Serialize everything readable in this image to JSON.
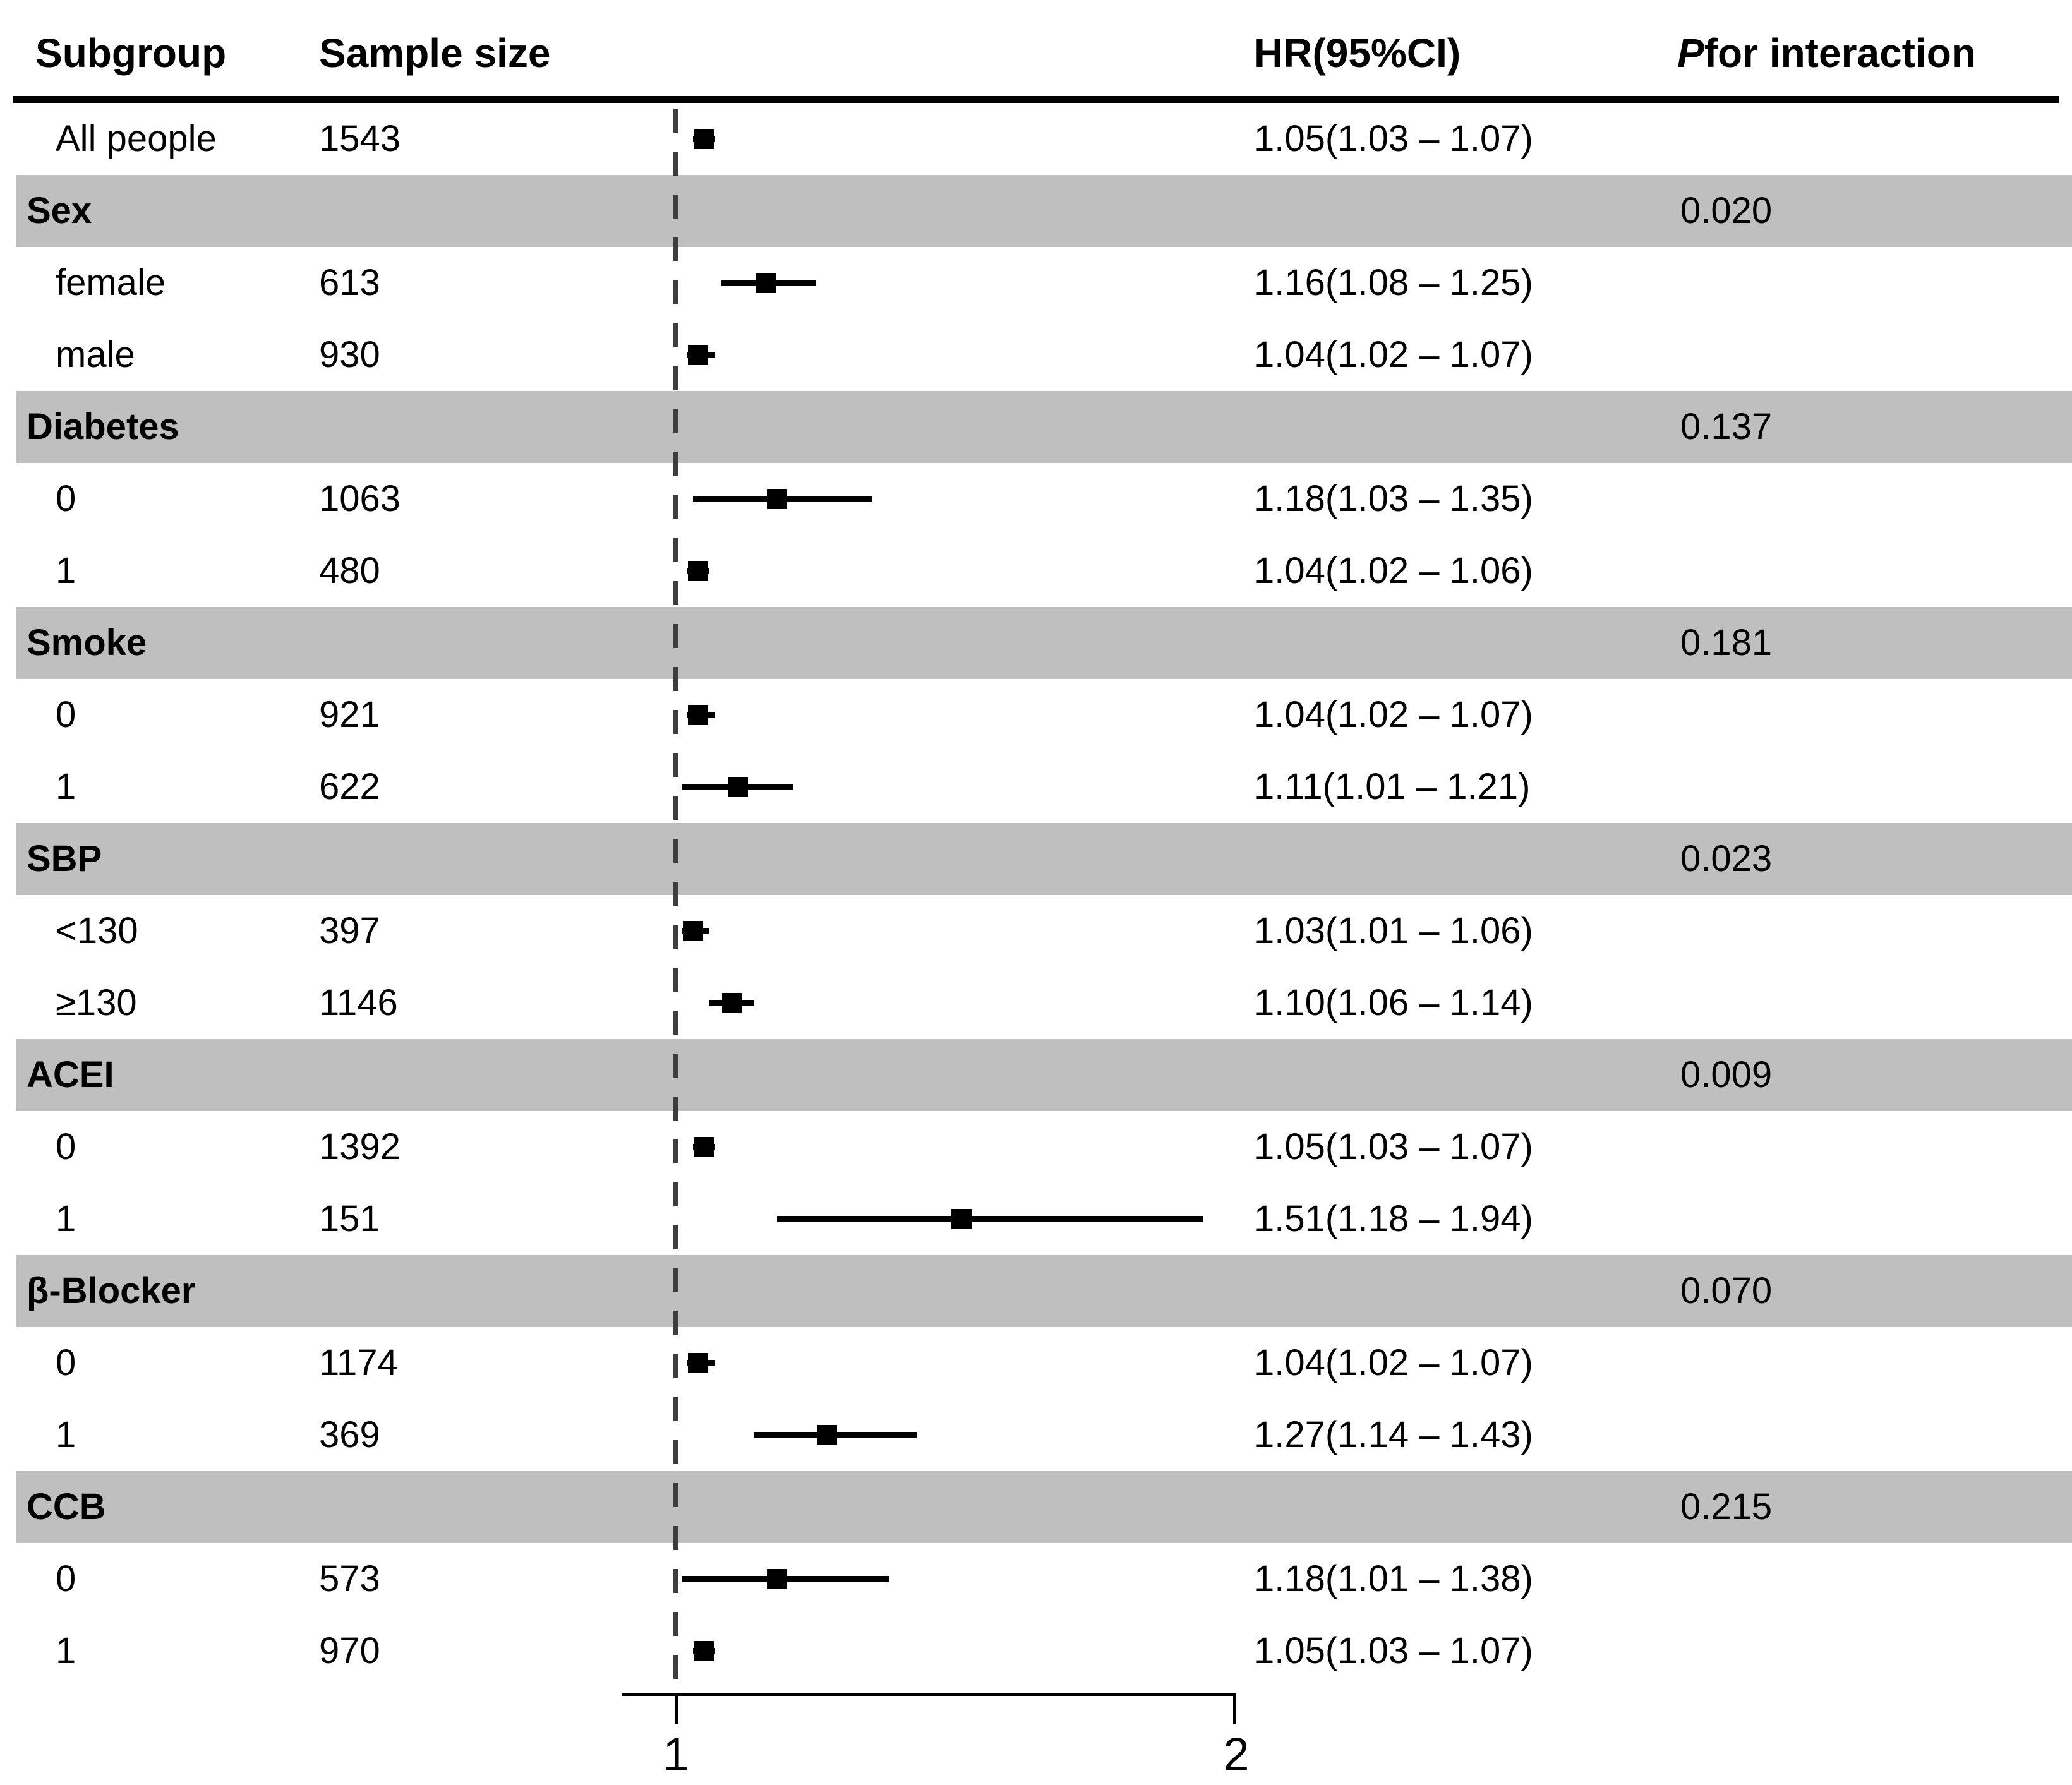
{
  "header": {
    "subgroup": "Subgroup",
    "sample_size": "Sample size",
    "hr_ci": "HR(95%CI)",
    "p_symbol": "P",
    "p_rest": " for interaction"
  },
  "axis": {
    "tick_labels": [
      "1",
      "2"
    ],
    "tick_values": [
      1,
      2
    ],
    "reference_value": 1
  },
  "colors": {
    "band_gray": "#bfbfbf",
    "marker_black": "#000000",
    "reference_dash": "#3d3d3d",
    "text": "#000000",
    "background": "#ffffff"
  },
  "rows": [
    {
      "type": "data",
      "label": "All people",
      "sample": "1543",
      "hr_text": "1.05(1.03 – 1.07)",
      "hr": 1.05,
      "lo": 1.03,
      "hi": 1.07
    },
    {
      "type": "band",
      "label": "Sex",
      "p": "0.020"
    },
    {
      "type": "data",
      "label": "female",
      "sample": "613",
      "hr_text": "1.16(1.08 – 1.25)",
      "hr": 1.16,
      "lo": 1.08,
      "hi": 1.25
    },
    {
      "type": "data",
      "label": "male",
      "sample": "930",
      "hr_text": "1.04(1.02 – 1.07)",
      "hr": 1.04,
      "lo": 1.02,
      "hi": 1.07
    },
    {
      "type": "band",
      "label": "Diabetes",
      "p": "0.137"
    },
    {
      "type": "data",
      "label": "0",
      "sample": "1063",
      "hr_text": "1.18(1.03 – 1.35)",
      "hr": 1.18,
      "lo": 1.03,
      "hi": 1.35
    },
    {
      "type": "data",
      "label": "1",
      "sample": "480",
      "hr_text": "1.04(1.02 – 1.06)",
      "hr": 1.04,
      "lo": 1.02,
      "hi": 1.06
    },
    {
      "type": "band",
      "label": "Smoke",
      "p": "0.181"
    },
    {
      "type": "data",
      "label": "0",
      "sample": "921",
      "hr_text": "1.04(1.02 – 1.07)",
      "hr": 1.04,
      "lo": 1.02,
      "hi": 1.07
    },
    {
      "type": "data",
      "label": "1",
      "sample": "622",
      "hr_text": "1.11(1.01 – 1.21)",
      "hr": 1.11,
      "lo": 1.01,
      "hi": 1.21
    },
    {
      "type": "band",
      "label": "SBP",
      "p": "0.023"
    },
    {
      "type": "data",
      "label": "<130",
      "sample": "397",
      "hr_text": "1.03(1.01 – 1.06)",
      "hr": 1.03,
      "lo": 1.01,
      "hi": 1.06
    },
    {
      "type": "data",
      "label": "≥130",
      "sample": "1146",
      "hr_text": "1.10(1.06 – 1.14)",
      "hr": 1.1,
      "lo": 1.06,
      "hi": 1.14
    },
    {
      "type": "band",
      "label": "ACEI",
      "p": "0.009"
    },
    {
      "type": "data",
      "label": "0",
      "sample": "1392",
      "hr_text": "1.05(1.03 – 1.07)",
      "hr": 1.05,
      "lo": 1.03,
      "hi": 1.07
    },
    {
      "type": "data",
      "label": "1",
      "sample": "151",
      "hr_text": "1.51(1.18 – 1.94)",
      "hr": 1.51,
      "lo": 1.18,
      "hi": 1.94
    },
    {
      "type": "band",
      "label": "β-Blocker",
      "p": "0.070"
    },
    {
      "type": "data",
      "label": "0",
      "sample": "1174",
      "hr_text": "1.04(1.02 – 1.07)",
      "hr": 1.04,
      "lo": 1.02,
      "hi": 1.07
    },
    {
      "type": "data",
      "label": "1",
      "sample": "369",
      "hr_text": "1.27(1.14 – 1.43)",
      "hr": 1.27,
      "lo": 1.14,
      "hi": 1.43
    },
    {
      "type": "band",
      "label": "CCB",
      "p": "0.215"
    },
    {
      "type": "data",
      "label": "0",
      "sample": "573",
      "hr_text": "1.18(1.01 – 1.38)",
      "hr": 1.18,
      "lo": 1.01,
      "hi": 1.38
    },
    {
      "type": "data",
      "label": "1",
      "sample": "970",
      "hr_text": "1.05(1.03 – 1.07)",
      "hr": 1.05,
      "lo": 1.03,
      "hi": 1.07
    }
  ],
  "chart_data": {
    "type": "forest",
    "title": "",
    "columns": [
      "Subgroup",
      "Sample size",
      "HR(95%CI)",
      "P for interaction"
    ],
    "x_ticks": [
      1,
      2
    ],
    "x_range": [
      0.9,
      2.05
    ],
    "reference_line": 1,
    "groups": [
      {
        "label": null,
        "p_interaction": null,
        "items": [
          {
            "subgroup": "All people",
            "n": 1543,
            "hr": 1.05,
            "ci_low": 1.03,
            "ci_high": 1.07
          }
        ]
      },
      {
        "label": "Sex",
        "p_interaction": "0.020",
        "items": [
          {
            "subgroup": "female",
            "n": 613,
            "hr": 1.16,
            "ci_low": 1.08,
            "ci_high": 1.25
          },
          {
            "subgroup": "male",
            "n": 930,
            "hr": 1.04,
            "ci_low": 1.02,
            "ci_high": 1.07
          }
        ]
      },
      {
        "label": "Diabetes",
        "p_interaction": "0.137",
        "items": [
          {
            "subgroup": "0",
            "n": 1063,
            "hr": 1.18,
            "ci_low": 1.03,
            "ci_high": 1.35
          },
          {
            "subgroup": "1",
            "n": 480,
            "hr": 1.04,
            "ci_low": 1.02,
            "ci_high": 1.06
          }
        ]
      },
      {
        "label": "Smoke",
        "p_interaction": "0.181",
        "items": [
          {
            "subgroup": "0",
            "n": 921,
            "hr": 1.04,
            "ci_low": 1.02,
            "ci_high": 1.07
          },
          {
            "subgroup": "1",
            "n": 622,
            "hr": 1.11,
            "ci_low": 1.01,
            "ci_high": 1.21
          }
        ]
      },
      {
        "label": "SBP",
        "p_interaction": "0.023",
        "items": [
          {
            "subgroup": "<130",
            "n": 397,
            "hr": 1.03,
            "ci_low": 1.01,
            "ci_high": 1.06
          },
          {
            "subgroup": "≥130",
            "n": 1146,
            "hr": 1.1,
            "ci_low": 1.06,
            "ci_high": 1.14
          }
        ]
      },
      {
        "label": "ACEI",
        "p_interaction": "0.009",
        "items": [
          {
            "subgroup": "0",
            "n": 1392,
            "hr": 1.05,
            "ci_low": 1.03,
            "ci_high": 1.07
          },
          {
            "subgroup": "1",
            "n": 151,
            "hr": 1.51,
            "ci_low": 1.18,
            "ci_high": 1.94
          }
        ]
      },
      {
        "label": "β-Blocker",
        "p_interaction": "0.070",
        "items": [
          {
            "subgroup": "0",
            "n": 1174,
            "hr": 1.04,
            "ci_low": 1.02,
            "ci_high": 1.07
          },
          {
            "subgroup": "1",
            "n": 369,
            "hr": 1.27,
            "ci_low": 1.14,
            "ci_high": 1.43
          }
        ]
      },
      {
        "label": "CCB",
        "p_interaction": "0.215",
        "items": [
          {
            "subgroup": "0",
            "n": 573,
            "hr": 1.18,
            "ci_low": 1.01,
            "ci_high": 1.38
          },
          {
            "subgroup": "1",
            "n": 970,
            "hr": 1.05,
            "ci_low": 1.03,
            "ci_high": 1.07
          }
        ]
      }
    ]
  }
}
